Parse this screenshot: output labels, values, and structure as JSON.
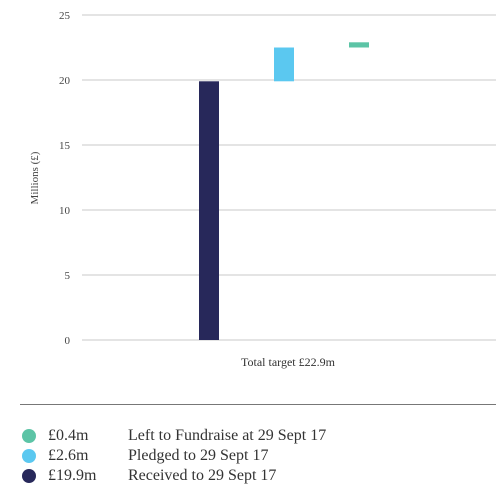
{
  "chart_data": {
    "type": "bar",
    "subtype": "stacked-floating",
    "ylabel": "Millions (£)",
    "ylim": [
      0,
      25
    ],
    "yticks": [
      0,
      5,
      10,
      15,
      20,
      25
    ],
    "grid": true,
    "category_label": "Total target £22.9m",
    "series": [
      {
        "name": "Received to 29 Sept 17",
        "start": 0,
        "end": 19.9,
        "color": "#27285a"
      },
      {
        "name": "Pledged to 29 Sept 17",
        "start": 19.9,
        "end": 22.5,
        "color": "#5bc8f0"
      },
      {
        "name": "Left to Fundraise at 29 Sept 17",
        "start": 22.5,
        "end": 22.9,
        "color": "#5cc4a6"
      }
    ]
  },
  "legend": [
    {
      "amount": "£0.4m",
      "label": "Left to Fundraise at 29 Sept 17",
      "color": "#5cc4a6"
    },
    {
      "amount": "£2.6m",
      "label": "Pledged to 29 Sept 17",
      "color": "#5bc8f0"
    },
    {
      "amount": "£19.9m",
      "label": "Received to 29 Sept 17",
      "color": "#27285a"
    }
  ]
}
